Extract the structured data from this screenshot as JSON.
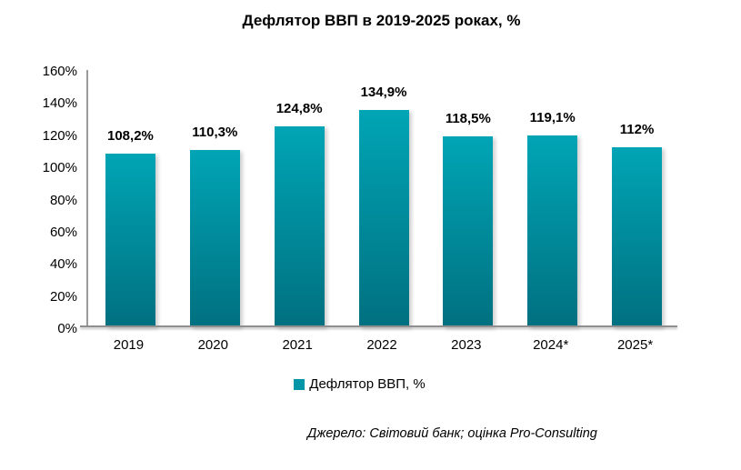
{
  "title": "Дефлятор ВВП в 2019-2025 роках, %",
  "chart_data": {
    "type": "bar",
    "title": "Дефлятор ВВП в 2019-2025 роках, %",
    "categories": [
      "2019",
      "2020",
      "2021",
      "2022",
      "2023",
      "2024*",
      "2025*"
    ],
    "values": [
      108.2,
      110.3,
      124.8,
      134.9,
      118.5,
      119.1,
      112
    ],
    "value_labels": [
      "108,2%",
      "110,3%",
      "124,8%",
      "134,9%",
      "118,5%",
      "119,1%",
      "112%"
    ],
    "series_name": "Дефлятор ВВП, %",
    "xlabel": "",
    "ylabel": "",
    "ylim": [
      0,
      160
    ],
    "y_tick_labels": [
      "0%",
      "20%",
      "40%",
      "60%",
      "80%",
      "100%",
      "120%",
      "140%",
      "160%"
    ],
    "grid": false,
    "legend_position": "bottom",
    "colors": {
      "bar_gradient_top": "#00A5B5",
      "bar_gradient_bottom": "#007080",
      "legend_marker": "#0096A8",
      "axis_line": "#9a9a9a"
    }
  },
  "legend": {
    "label": "Дефлятор ВВП, %"
  },
  "source_note": "Джерело: Світовий банк; оцінка Pro-Consulting"
}
